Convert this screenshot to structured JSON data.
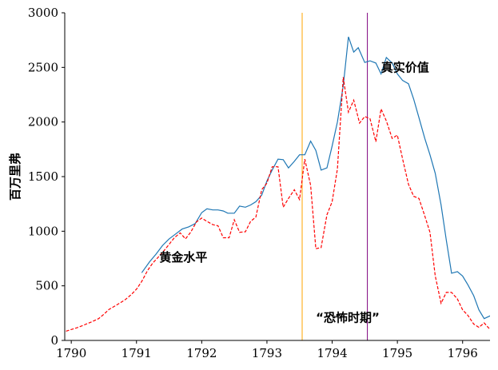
{
  "chart_data": {
    "type": "line",
    "ylabel": "百万里弗",
    "xlim": [
      1789.9,
      1796.42
    ],
    "ylim": [
      0,
      3000
    ],
    "x_ticks": [
      1790,
      1791,
      1792,
      1793,
      1794,
      1795,
      1796
    ],
    "y_ticks": [
      0,
      500,
      1000,
      1500,
      2000,
      2500,
      3000
    ],
    "grid": false,
    "series": [
      {
        "key": "real",
        "color": "#1f77b4",
        "style": "solid",
        "points": [
          [
            1791.08,
            620
          ],
          [
            1791.2,
            720
          ],
          [
            1791.3,
            790
          ],
          [
            1791.4,
            870
          ],
          [
            1791.5,
            930
          ],
          [
            1791.6,
            975
          ],
          [
            1791.7,
            1020
          ],
          [
            1791.8,
            1040
          ],
          [
            1791.9,
            1070
          ],
          [
            1792.0,
            1170
          ],
          [
            1792.08,
            1205
          ],
          [
            1792.17,
            1195
          ],
          [
            1792.25,
            1195
          ],
          [
            1792.33,
            1185
          ],
          [
            1792.4,
            1165
          ],
          [
            1792.5,
            1165
          ],
          [
            1792.58,
            1230
          ],
          [
            1792.67,
            1220
          ],
          [
            1792.75,
            1240
          ],
          [
            1792.83,
            1270
          ],
          [
            1792.92,
            1330
          ],
          [
            1793.0,
            1460
          ],
          [
            1793.08,
            1560
          ],
          [
            1793.17,
            1660
          ],
          [
            1793.25,
            1655
          ],
          [
            1793.33,
            1580
          ],
          [
            1793.42,
            1640
          ],
          [
            1793.5,
            1700
          ],
          [
            1793.58,
            1700
          ],
          [
            1793.67,
            1825
          ],
          [
            1793.75,
            1740
          ],
          [
            1793.83,
            1560
          ],
          [
            1793.92,
            1580
          ],
          [
            1794.0,
            1780
          ],
          [
            1794.08,
            2000
          ],
          [
            1794.17,
            2330
          ],
          [
            1794.25,
            2780
          ],
          [
            1794.33,
            2640
          ],
          [
            1794.4,
            2680
          ],
          [
            1794.5,
            2545
          ],
          [
            1794.58,
            2560
          ],
          [
            1794.67,
            2540
          ],
          [
            1794.75,
            2440
          ],
          [
            1794.83,
            2590
          ],
          [
            1794.92,
            2540
          ],
          [
            1795.0,
            2440
          ],
          [
            1795.08,
            2380
          ],
          [
            1795.17,
            2350
          ],
          [
            1795.25,
            2210
          ],
          [
            1795.33,
            2040
          ],
          [
            1795.42,
            1850
          ],
          [
            1795.5,
            1700
          ],
          [
            1795.58,
            1530
          ],
          [
            1795.67,
            1240
          ],
          [
            1795.75,
            920
          ],
          [
            1795.83,
            615
          ],
          [
            1795.92,
            630
          ],
          [
            1796.0,
            590
          ],
          [
            1796.08,
            510
          ],
          [
            1796.17,
            410
          ],
          [
            1796.25,
            280
          ],
          [
            1796.33,
            200
          ],
          [
            1796.42,
            225
          ],
          [
            1796.5,
            180
          ],
          [
            1796.58,
            175
          ]
        ]
      },
      {
        "key": "gold",
        "color": "#ff0000",
        "style": "dashed",
        "points": [
          [
            1789.92,
            85
          ],
          [
            1790.0,
            100
          ],
          [
            1790.08,
            115
          ],
          [
            1790.17,
            135
          ],
          [
            1790.25,
            155
          ],
          [
            1790.33,
            175
          ],
          [
            1790.42,
            200
          ],
          [
            1790.5,
            240
          ],
          [
            1790.58,
            285
          ],
          [
            1790.67,
            315
          ],
          [
            1790.75,
            345
          ],
          [
            1790.83,
            375
          ],
          [
            1790.92,
            420
          ],
          [
            1791.0,
            470
          ],
          [
            1791.08,
            540
          ],
          [
            1791.17,
            640
          ],
          [
            1791.25,
            710
          ],
          [
            1791.33,
            760
          ],
          [
            1791.42,
            820
          ],
          [
            1791.5,
            880
          ],
          [
            1791.58,
            940
          ],
          [
            1791.67,
            985
          ],
          [
            1791.75,
            930
          ],
          [
            1791.83,
            990
          ],
          [
            1791.92,
            1085
          ],
          [
            1792.0,
            1120
          ],
          [
            1792.08,
            1090
          ],
          [
            1792.17,
            1060
          ],
          [
            1792.25,
            1050
          ],
          [
            1792.33,
            940
          ],
          [
            1792.42,
            940
          ],
          [
            1792.5,
            1105
          ],
          [
            1792.58,
            990
          ],
          [
            1792.67,
            995
          ],
          [
            1792.75,
            1090
          ],
          [
            1792.83,
            1130
          ],
          [
            1792.92,
            1380
          ],
          [
            1793.0,
            1440
          ],
          [
            1793.08,
            1590
          ],
          [
            1793.17,
            1590
          ],
          [
            1793.25,
            1220
          ],
          [
            1793.33,
            1300
          ],
          [
            1793.42,
            1380
          ],
          [
            1793.5,
            1290
          ],
          [
            1793.58,
            1660
          ],
          [
            1793.67,
            1420
          ],
          [
            1793.75,
            840
          ],
          [
            1793.83,
            850
          ],
          [
            1793.92,
            1150
          ],
          [
            1794.0,
            1270
          ],
          [
            1794.08,
            1570
          ],
          [
            1794.17,
            2410
          ],
          [
            1794.25,
            2090
          ],
          [
            1794.33,
            2200
          ],
          [
            1794.42,
            1990
          ],
          [
            1794.5,
            2050
          ],
          [
            1794.58,
            2030
          ],
          [
            1794.67,
            1820
          ],
          [
            1794.75,
            2120
          ],
          [
            1794.83,
            2010
          ],
          [
            1794.92,
            1850
          ],
          [
            1795.0,
            1880
          ],
          [
            1795.08,
            1660
          ],
          [
            1795.17,
            1430
          ],
          [
            1795.25,
            1320
          ],
          [
            1795.33,
            1300
          ],
          [
            1795.42,
            1140
          ],
          [
            1795.5,
            990
          ],
          [
            1795.58,
            590
          ],
          [
            1795.67,
            340
          ],
          [
            1795.75,
            440
          ],
          [
            1795.83,
            440
          ],
          [
            1795.92,
            380
          ],
          [
            1796.0,
            280
          ],
          [
            1796.08,
            230
          ],
          [
            1796.17,
            150
          ],
          [
            1796.25,
            120
          ],
          [
            1796.33,
            160
          ],
          [
            1796.42,
            100
          ],
          [
            1796.5,
            150
          ],
          [
            1796.58,
            150
          ],
          [
            1796.67,
            100
          ]
        ]
      }
    ],
    "vlines": [
      {
        "x": 1793.54,
        "color": "#ffa500"
      },
      {
        "x": 1794.54,
        "color": "#800080"
      }
    ],
    "annotations": [
      {
        "text": "真实价值",
        "x": 1794.75,
        "y": 2500,
        "key": "label_real"
      },
      {
        "text": "黄金水平",
        "x": 1791.35,
        "y": 760,
        "key": "label_gold"
      },
      {
        "text": "“恐怖时期”",
        "x": 1793.75,
        "y": 210,
        "key": "label_terror"
      }
    ]
  }
}
